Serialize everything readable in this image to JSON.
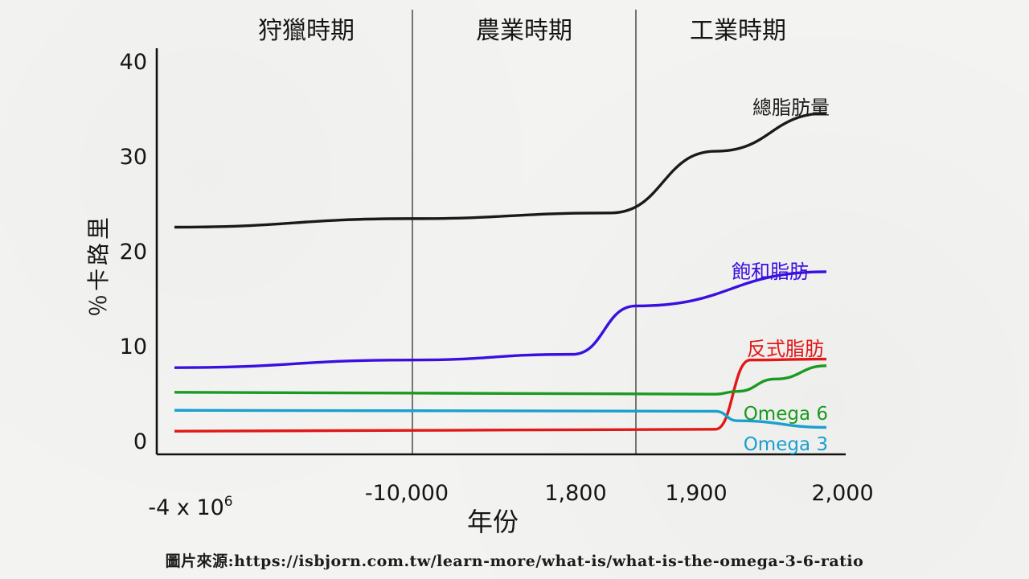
{
  "chart_data": {
    "type": "line",
    "periods": [
      "狩獵時期",
      "農業時期",
      "工業時期"
    ],
    "ylabel": "％卡路里",
    "xlabel": "年份",
    "ylim": [
      0,
      40
    ],
    "yticks": [
      0,
      10,
      20,
      30,
      40
    ],
    "x_categories": [
      "-4 x 10^6",
      "-10,000",
      "1,800",
      "1,900",
      "2,000"
    ],
    "x_tick_labels": [
      {
        "base": "-4 x 10",
        "sup": "6"
      },
      {
        "base": "-10,000",
        "sup": ""
      },
      {
        "base": "1,800",
        "sup": ""
      },
      {
        "base": "1,900",
        "sup": ""
      },
      {
        "base": "2,000",
        "sup": ""
      }
    ],
    "period_boundaries": [
      "-10,000",
      "1,850"
    ],
    "series": [
      {
        "name": "總脂肪量",
        "color": "#1a1a1a",
        "points": [
          [
            "-4 x 10^6",
            22.5
          ],
          [
            "-10,000",
            23.4
          ],
          [
            "1,830",
            24.0
          ],
          [
            "1,900",
            30.5
          ],
          [
            "2,000",
            34.5
          ]
        ]
      },
      {
        "name": "飽和脂肪",
        "color": "#3a10e0",
        "points": [
          [
            "-4 x 10^6",
            7.7
          ],
          [
            "-10,000",
            8.5
          ],
          [
            "1,800",
            9.1
          ],
          [
            "1,850",
            14.2
          ],
          [
            "2,000",
            17.8
          ]
        ]
      },
      {
        "name": "反式脂肪",
        "color": "#e01818",
        "points": [
          [
            "-4 x 10^6",
            1.0
          ],
          [
            "1,900",
            1.2
          ],
          [
            "1,940",
            8.5
          ],
          [
            "2,000",
            8.6
          ]
        ]
      },
      {
        "name": "Omega 6",
        "color": "#1a9a20",
        "points": [
          [
            "-4 x 10^6",
            5.1
          ],
          [
            "1,900",
            4.9
          ],
          [
            "1,930",
            5.2
          ],
          [
            "1,960",
            6.5
          ],
          [
            "2,000",
            7.9
          ]
        ]
      },
      {
        "name": "Omega 3",
        "color": "#1aa0d0",
        "points": [
          [
            "-4 x 10^6",
            3.2
          ],
          [
            "1,900",
            3.1
          ],
          [
            "1,930",
            2.1
          ],
          [
            "2,000",
            1.4
          ]
        ]
      }
    ]
  },
  "source": "圖片來源:https://isbjorn.com.tw/learn-more/what-is/what-is-the-omega-3-6-ratio"
}
